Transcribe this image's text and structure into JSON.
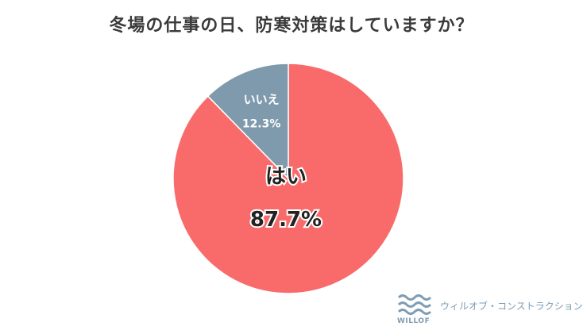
{
  "chart_data": {
    "type": "pie",
    "title": "冬場の仕事の日、防寒対策はしていますか？",
    "slices": [
      {
        "label": "はい",
        "value": 87.7,
        "value_label": "87.7%",
        "color": "#f96b6b"
      },
      {
        "label": "いいえ",
        "value": 12.3,
        "value_label": "12.3%",
        "color": "#7f9aac"
      }
    ],
    "start_angle_deg": 0,
    "direction": "clockwise",
    "legend": "none"
  },
  "branding": {
    "mark_text": "WILLOF",
    "name": "ウィルオブ・コンストラクション",
    "color": "#7e9cb3"
  }
}
